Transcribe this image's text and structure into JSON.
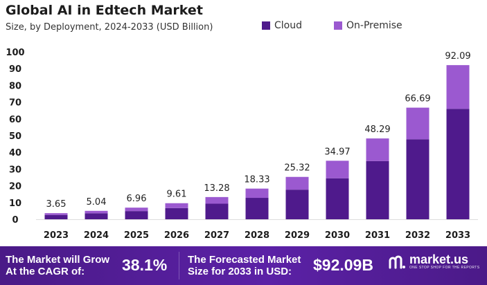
{
  "header": {
    "title": "Global AI in Edtech Market",
    "subtitle": "Size, by Deployment, 2024-2033 (USD Billion)"
  },
  "legend": {
    "cloud": "Cloud",
    "on_premise": "On-Premise"
  },
  "colors": {
    "cloud": "#4f1a8c",
    "on_premise": "#9b59d0",
    "footer_bg": "#4f1d93"
  },
  "chart_data": {
    "type": "bar",
    "stacked": true,
    "title": "Global AI in Edtech Market",
    "subtitle": "Size, by Deployment, 2024-2033 (USD Billion)",
    "categories": [
      "2023",
      "2024",
      "2025",
      "2026",
      "2027",
      "2028",
      "2029",
      "2030",
      "2031",
      "2032",
      "2033"
    ],
    "series": [
      {
        "name": "Cloud",
        "values": [
          2.6,
          3.6,
          4.9,
          6.7,
          9.3,
          12.8,
          17.7,
          24.5,
          34.8,
          47.8,
          66.0
        ]
      },
      {
        "name": "On-Premise",
        "values": [
          1.05,
          1.44,
          2.06,
          2.91,
          3.98,
          5.53,
          7.62,
          10.47,
          13.49,
          18.89,
          26.09
        ]
      }
    ],
    "totals": [
      3.65,
      5.04,
      6.96,
      9.61,
      13.28,
      18.33,
      25.32,
      34.97,
      48.29,
      66.69,
      92.09
    ],
    "total_labels": [
      "3.65",
      "5.04",
      "6.96",
      "9.61",
      "13.28",
      "18.33",
      "25.32",
      "34.97",
      "48.29",
      "66.69",
      "92.09"
    ],
    "yticks": [
      "0",
      "10",
      "20",
      "30",
      "40",
      "50",
      "60",
      "70",
      "80",
      "90",
      "100"
    ],
    "ylim": [
      0,
      100
    ],
    "xlabel": "",
    "ylabel": "",
    "grid": false,
    "legend_position": "top-right"
  },
  "footer": {
    "cagr_text_line1": "The Market will Grow",
    "cagr_text_line2": "At the CAGR of:",
    "cagr_value": "38.1%",
    "forecast_text_line1": "The Forecasted Market",
    "forecast_text_line2": "Size for 2033 in USD:",
    "forecast_value": "$92.09B",
    "brand_name": "market.us",
    "brand_tagline": "ONE STOP SHOP FOR THE REPORTS"
  }
}
